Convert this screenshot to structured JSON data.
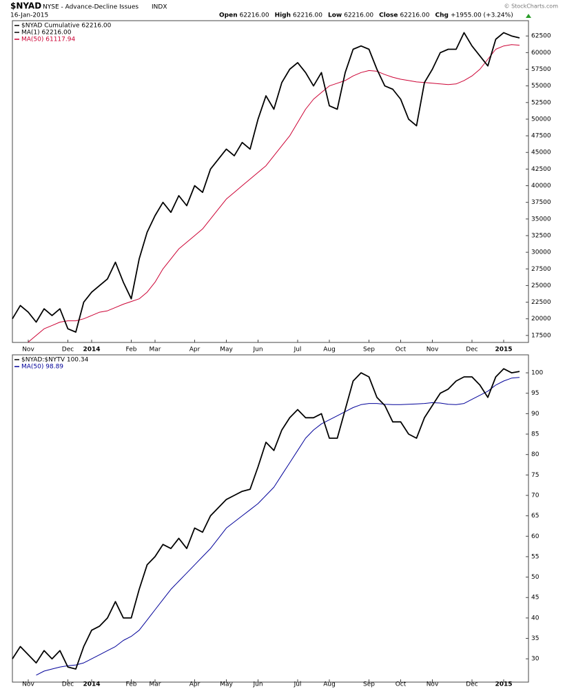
{
  "header": {
    "symbol": "$NYAD",
    "name": "NYSE - Advance-Decline Issues",
    "exchange": "INDX",
    "date": "16-Jan-2015",
    "quote": [
      {
        "label": "Open",
        "value": "62216.00"
      },
      {
        "label": "High",
        "value": "62216.00"
      },
      {
        "label": "Low",
        "value": "62216.00"
      },
      {
        "label": "Close",
        "value": "62216.00"
      },
      {
        "label": "Chg",
        "value": "+1955.00 (+3.24%)"
      }
    ],
    "credit": "© StockCharts.com"
  },
  "chart_data": [
    {
      "type": "line",
      "label": "$NYAD Cumulative 62216.00",
      "categories": [
        null,
        null,
        "Nov",
        null,
        null,
        null,
        null,
        "Dec",
        null,
        null,
        "2014",
        null,
        null,
        null,
        null,
        "Feb",
        null,
        null,
        "Mar",
        null,
        null,
        null,
        null,
        "Apr",
        null,
        null,
        null,
        "May",
        null,
        null,
        null,
        "Jun",
        null,
        null,
        null,
        null,
        "Jul",
        null,
        null,
        null,
        "Aug",
        null,
        null,
        null,
        null,
        "Sep",
        null,
        null,
        null,
        "Oct",
        null,
        null,
        null,
        "Nov",
        null,
        null,
        null,
        null,
        "Dec",
        null,
        null,
        null,
        "2015",
        null,
        null
      ],
      "series": [
        {
          "name": "MA(1) 62216.00",
          "color": "#000000",
          "values": [
            20000,
            22000,
            21000,
            19500,
            21500,
            20500,
            21500,
            18500,
            18000,
            22500,
            24000,
            25000,
            26000,
            28500,
            25500,
            23000,
            29000,
            33000,
            35500,
            37500,
            36000,
            38500,
            37000,
            40000,
            39000,
            42500,
            44000,
            45500,
            44500,
            46500,
            45500,
            50000,
            53500,
            51500,
            55500,
            57500,
            58500,
            57000,
            55000,
            57000,
            52000,
            51500,
            57000,
            60500,
            61000,
            60500,
            57500,
            55000,
            54500,
            53000,
            50000,
            49000,
            55500,
            57500,
            60000,
            60500,
            60500,
            63000,
            61000,
            59500,
            58000,
            62000,
            63000,
            62500,
            62216
          ]
        },
        {
          "name": "MA(50) 61117.94",
          "color": "#cc0033",
          "values": [
            null,
            null,
            16500,
            17500,
            18500,
            19000,
            19500,
            19700,
            19700,
            20000,
            20500,
            21000,
            21200,
            21700,
            22200,
            22600,
            23000,
            24000,
            25500,
            27500,
            29000,
            30500,
            31500,
            32500,
            33500,
            35000,
            36500,
            38000,
            39000,
            40000,
            41000,
            42000,
            43000,
            44500,
            46000,
            47500,
            49500,
            51500,
            53000,
            54000,
            55000,
            55400,
            55800,
            56500,
            57000,
            57300,
            57200,
            56700,
            56300,
            56000,
            55800,
            55600,
            55500,
            55400,
            55300,
            55200,
            55300,
            55800,
            56500,
            57500,
            59000,
            60500,
            61000,
            61200,
            61118
          ]
        }
      ],
      "ylim": [
        16450,
        64800
      ],
      "yticks": [
        17500,
        20000,
        22500,
        25000,
        27500,
        30000,
        32500,
        35000,
        37500,
        40000,
        42500,
        45000,
        47500,
        50000,
        52500,
        55000,
        57500,
        60000,
        62500
      ]
    },
    {
      "type": "line",
      "label": "$NYAD:$NYTV 100.34",
      "categories": [
        null,
        null,
        "Nov",
        null,
        null,
        null,
        null,
        "Dec",
        null,
        null,
        "2014",
        null,
        null,
        null,
        null,
        "Feb",
        null,
        null,
        "Mar",
        null,
        null,
        null,
        null,
        "Apr",
        null,
        null,
        null,
        "May",
        null,
        null,
        null,
        "Jun",
        null,
        null,
        null,
        null,
        "Jul",
        null,
        null,
        null,
        "Aug",
        null,
        null,
        null,
        null,
        "Sep",
        null,
        null,
        null,
        "Oct",
        null,
        null,
        null,
        "Nov",
        null,
        null,
        null,
        null,
        "Dec",
        null,
        null,
        null,
        "2015",
        null,
        null
      ],
      "series": [
        {
          "name": "$NYAD:$NYTV",
          "color": "#000000",
          "values": [
            30,
            33,
            31,
            29,
            32,
            30,
            32,
            28,
            27.5,
            33,
            37,
            38,
            40,
            44,
            40,
            40,
            47,
            53,
            55,
            58,
            57,
            59.5,
            57,
            62,
            61,
            65,
            67,
            69,
            70,
            71,
            71.5,
            77,
            83,
            81,
            86,
            89,
            91,
            89,
            89,
            90,
            84,
            84,
            91,
            98,
            100,
            99,
            94,
            92,
            88,
            88,
            85,
            84,
            89,
            92,
            95,
            96,
            98,
            99,
            99,
            97,
            94,
            99,
            101,
            100,
            100.34
          ]
        },
        {
          "name": "MA(50) 98.89",
          "color": "#000099",
          "values": [
            null,
            null,
            null,
            26,
            27,
            27.5,
            28,
            28.3,
            28.5,
            29,
            30,
            31,
            32,
            33,
            34.5,
            35.5,
            37,
            39.5,
            42,
            44.5,
            47,
            49,
            51,
            53,
            55,
            57,
            59.5,
            62,
            63.5,
            65,
            66.5,
            68,
            70,
            72,
            75,
            78,
            81,
            84,
            86,
            87.5,
            88.5,
            89.5,
            90.5,
            91.5,
            92.2,
            92.5,
            92.5,
            92.3,
            92.2,
            92.2,
            92.3,
            92.4,
            92.5,
            92.7,
            92.6,
            92.3,
            92.2,
            92.5,
            93.5,
            94.5,
            95.5,
            97,
            98,
            98.7,
            98.89
          ]
        }
      ],
      "ylim": [
        24.3,
        104.4
      ],
      "yticks": [
        30,
        35,
        40,
        45,
        50,
        55,
        60,
        65,
        70,
        75,
        80,
        85,
        90,
        95,
        100
      ]
    }
  ]
}
